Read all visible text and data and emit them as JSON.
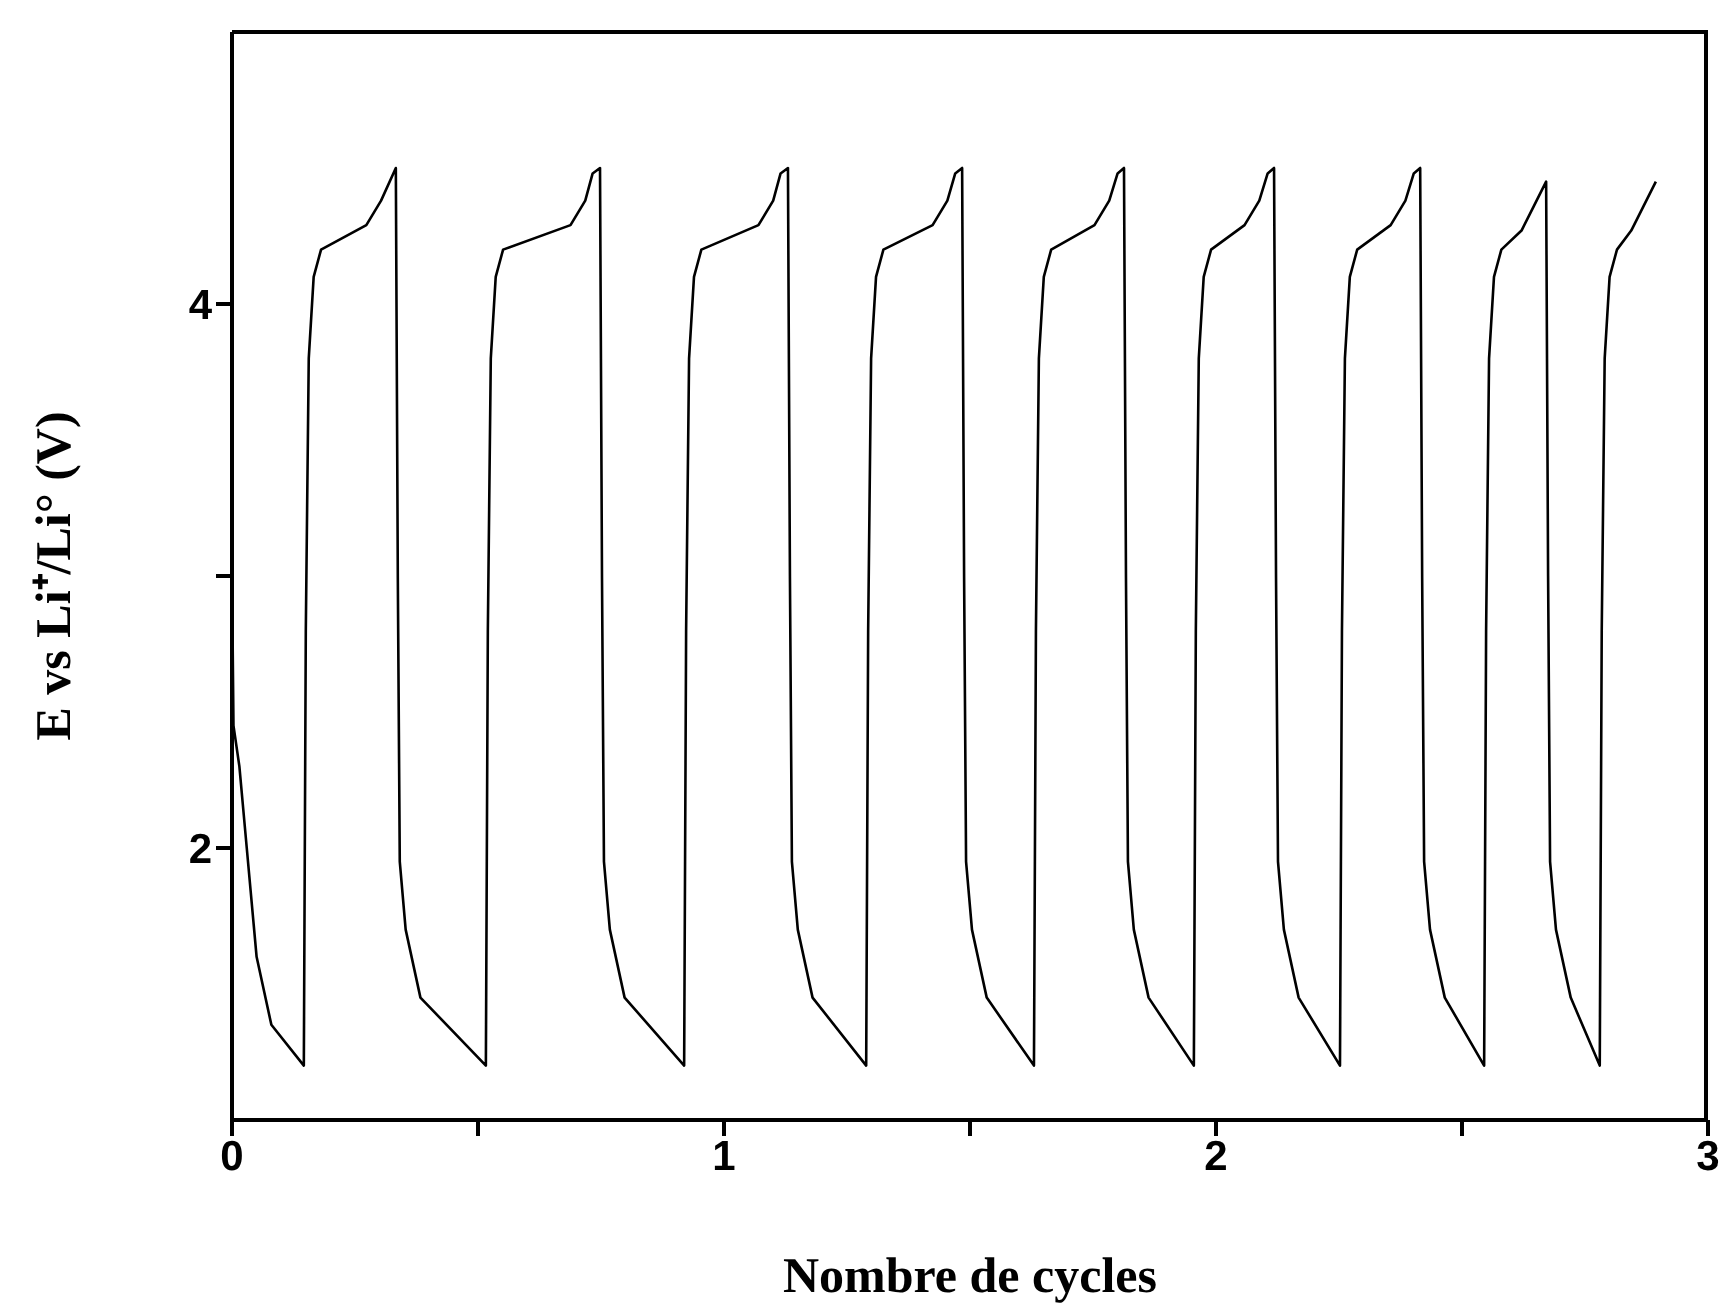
{
  "chart_data": {
    "type": "line",
    "xlabel": "Nombre de cycles",
    "ylabel": "E vs Li⁺/Li°  (V)",
    "color": "#000000",
    "x": [
      0,
      0.003,
      0.015,
      0.03,
      0.05,
      0.08,
      0.146,
      0.15,
      0.156,
      0.166,
      0.181,
      0.273,
      0.303,
      0.333,
      0.337,
      0.341,
      0.353,
      0.383,
      0.516,
      0.52,
      0.526,
      0.536,
      0.551,
      0.688,
      0.718,
      0.733,
      0.748,
      0.752,
      0.756,
      0.768,
      0.798,
      0.919,
      0.923,
      0.929,
      0.939,
      0.954,
      1.07,
      1.1,
      1.115,
      1.13,
      1.134,
      1.138,
      1.15,
      1.18,
      1.289,
      1.293,
      1.299,
      1.309,
      1.324,
      1.424,
      1.454,
      1.47,
      1.484,
      1.488,
      1.492,
      1.504,
      1.534,
      1.63,
      1.634,
      1.64,
      1.65,
      1.665,
      1.753,
      1.783,
      1.8,
      1.813,
      1.817,
      1.821,
      1.833,
      1.863,
      1.955,
      1.959,
      1.965,
      1.975,
      1.99,
      2.058,
      2.088,
      2.105,
      2.118,
      2.122,
      2.126,
      2.138,
      2.168,
      2.252,
      2.256,
      2.262,
      2.272,
      2.287,
      2.355,
      2.385,
      2.402,
      2.415,
      2.419,
      2.423,
      2.435,
      2.465,
      2.545,
      2.549,
      2.555,
      2.565,
      2.58,
      2.621,
      2.646,
      2.671,
      2.675,
      2.679,
      2.691,
      2.721,
      2.78,
      2.784,
      2.79,
      2.8,
      2.815,
      2.844,
      2.869,
      2.894
    ],
    "values": [
      3.0,
      2.45,
      2.3,
      2.0,
      1.6,
      1.35,
      1.2,
      2.8,
      3.8,
      4.1,
      4.2,
      4.29,
      4.38,
      4.5,
      3.0,
      1.95,
      1.7,
      1.45,
      1.2,
      2.8,
      3.8,
      4.1,
      4.2,
      4.29,
      4.38,
      4.48,
      4.5,
      3.0,
      1.95,
      1.7,
      1.45,
      1.2,
      2.8,
      3.8,
      4.1,
      4.2,
      4.29,
      4.38,
      4.48,
      4.5,
      3.0,
      1.95,
      1.7,
      1.45,
      1.2,
      2.8,
      3.8,
      4.1,
      4.2,
      4.29,
      4.38,
      4.48,
      4.5,
      3.0,
      1.95,
      1.7,
      1.45,
      1.2,
      2.8,
      3.8,
      4.1,
      4.2,
      4.29,
      4.38,
      4.48,
      4.5,
      3.0,
      1.95,
      1.7,
      1.45,
      1.2,
      2.8,
      3.8,
      4.1,
      4.2,
      4.29,
      4.38,
      4.48,
      4.5,
      3.0,
      1.95,
      1.7,
      1.45,
      1.2,
      2.8,
      3.8,
      4.1,
      4.2,
      4.29,
      4.38,
      4.48,
      4.5,
      3.0,
      1.95,
      1.7,
      1.45,
      1.2,
      2.8,
      3.8,
      4.1,
      4.2,
      4.27,
      4.36,
      4.45,
      3.0,
      1.95,
      1.7,
      1.45,
      1.2,
      2.8,
      3.8,
      4.1,
      4.2,
      4.27,
      4.36,
      4.45
    ],
    "xlim": [
      0,
      3
    ],
    "xticks": [
      0,
      {
        "value": 0.5,
        "label": null
      },
      1,
      {
        "value": 1.5,
        "label": null
      },
      2,
      {
        "value": 2.5,
        "label": null
      },
      3
    ],
    "ylim": [
      1,
      5
    ],
    "yticks": [
      2,
      {
        "value": 3,
        "label": null
      },
      4
    ]
  }
}
